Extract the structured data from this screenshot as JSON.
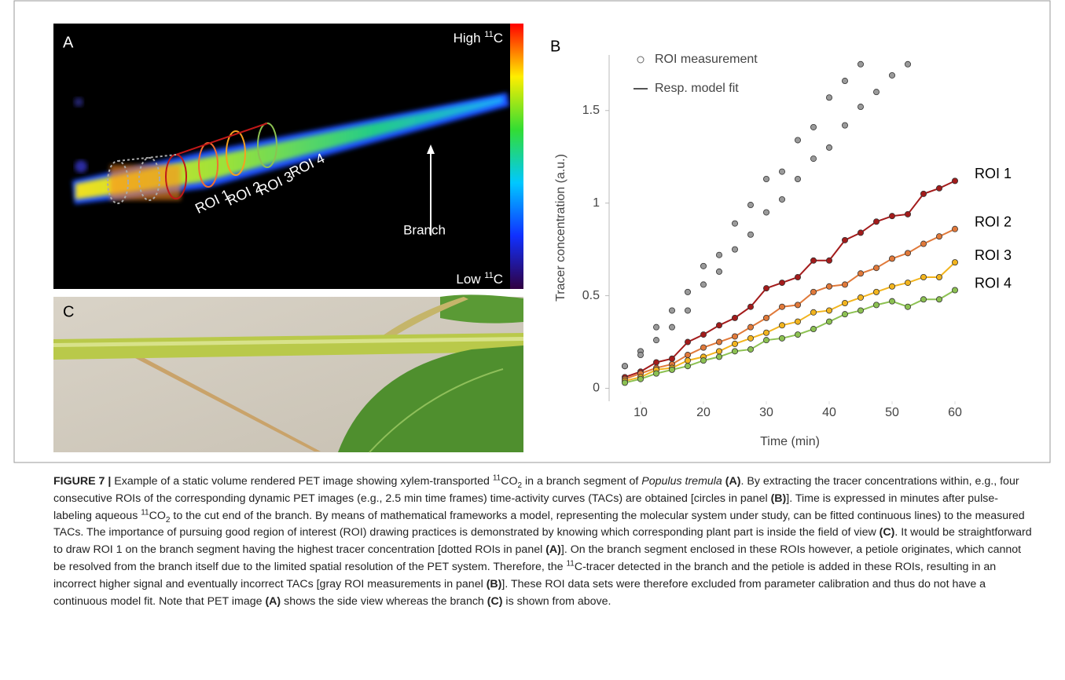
{
  "panel_a": {
    "label": "A",
    "high": [
      "High ",
      "11",
      "C"
    ],
    "low": [
      "Low ",
      "11",
      "C"
    ],
    "rois": [
      "ROI 1",
      "ROI 2",
      "ROI 3",
      "ROI 4"
    ],
    "arrow_label": "Branch"
  },
  "panel_c": {
    "label": "C"
  },
  "chart_data": {
    "type": "scatter_line",
    "panel_label": "B",
    "xlabel": "Time (min)",
    "ylabel": "Tracer concentration (a.u.)",
    "legend": [
      "ROI measurement",
      "Resp. model fit"
    ],
    "x": [
      7.5,
      10,
      12.5,
      15,
      17.5,
      20,
      22.5,
      25,
      27.5,
      30,
      32.5,
      35,
      37.5,
      40,
      42.5,
      45,
      47.5,
      50,
      52.5,
      55,
      57.5,
      60
    ],
    "xlim": [
      5,
      62.5
    ],
    "xticks": [
      10,
      20,
      30,
      40,
      50,
      60
    ],
    "ylim": [
      -0.07,
      1.8
    ],
    "yticks": [
      0,
      0.5,
      1,
      1.5
    ],
    "series": [
      {
        "color": "#9a9a9a",
        "fit": false,
        "values": [
          0.12,
          0.2,
          0.33,
          0.42,
          0.52,
          0.66,
          0.72,
          0.89,
          0.99,
          1.13,
          1.17,
          1.34,
          1.41,
          1.57,
          1.66,
          1.75,
          null,
          1.69,
          1.75,
          null,
          null,
          null
        ]
      },
      {
        "color": "#9a9a9a",
        "fit": false,
        "values": [
          0.12,
          0.18,
          0.26,
          0.33,
          0.42,
          0.56,
          0.63,
          0.75,
          0.83,
          0.95,
          1.02,
          1.13,
          1.24,
          1.3,
          1.42,
          1.52,
          1.6,
          null,
          null,
          null,
          null,
          null
        ]
      },
      {
        "name": "ROI 1",
        "color": "#a31b1b",
        "fit": true,
        "values": [
          0.06,
          0.09,
          0.14,
          0.16,
          0.25,
          0.29,
          0.34,
          0.38,
          0.44,
          0.54,
          0.57,
          0.6,
          0.69,
          0.69,
          0.8,
          0.84,
          0.9,
          0.93,
          0.94,
          1.05,
          1.08,
          1.12
        ]
      },
      {
        "name": "ROI 2",
        "color": "#e0793a",
        "fit": true,
        "values": [
          0.05,
          0.08,
          0.11,
          0.13,
          0.18,
          0.22,
          0.25,
          0.28,
          0.33,
          0.38,
          0.44,
          0.45,
          0.52,
          0.55,
          0.56,
          0.62,
          0.65,
          0.7,
          0.73,
          0.78,
          0.82,
          0.86
        ]
      },
      {
        "name": "ROI 3",
        "color": "#f2b41e",
        "fit": true,
        "values": [
          0.04,
          0.06,
          0.1,
          0.11,
          0.15,
          0.17,
          0.2,
          0.24,
          0.27,
          0.3,
          0.34,
          0.36,
          0.41,
          0.42,
          0.46,
          0.49,
          0.52,
          0.55,
          0.57,
          0.6,
          0.6,
          0.68
        ]
      },
      {
        "name": "ROI 4",
        "color": "#8cc152",
        "fit": true,
        "values": [
          0.03,
          0.05,
          0.08,
          0.1,
          0.12,
          0.15,
          0.17,
          0.2,
          0.21,
          0.26,
          0.27,
          0.29,
          0.32,
          0.36,
          0.4,
          0.42,
          0.45,
          0.47,
          0.44,
          0.48,
          0.48,
          0.53
        ]
      }
    ]
  },
  "caption": [
    "FIGURE 7 |",
    " Example of a static volume rendered PET image showing xylem-transported ",
    "11",
    "CO",
    "2",
    " in a branch segment of ",
    "Populus tremula",
    "(A)",
    ". By extracting the tracer concentrations within, e.g., four consecutive ROIs of the corresponding dynamic PET images (e.g., 2.5 min time frames) time-activity curves (TACs) are obtained [circles in panel ",
    "(B)",
    "]. Time is expressed in minutes after pulse-labeling aqueous ",
    "11",
    "CO",
    "2",
    " to the cut end of the branch. By means of mathematical frameworks a model, representing the molecular system under study, can be fitted continuous lines) to the measured TACs. The importance of pursuing good region of interest (ROI) drawing practices is demonstrated by knowing which corresponding plant part is inside the field of view ",
    "(C)",
    ". It would be straightforward to draw ROI 1 on the branch segment having the highest tracer concentration [dotted ROIs in panel ",
    "(A)",
    "]. On the branch segment enclosed in these ROIs however, a petiole originates, which cannot be resolved from the branch itself due to the limited spatial resolution of the PET system. Therefore, the ",
    "11",
    "C-tracer detected in the branch and the petiole is added in these ROIs, resulting in an incorrect higher signal and eventually incorrect TACs [gray ROI measurements in panel ",
    "(B)",
    "]. These ROI data sets were therefore excluded from parameter calibration and thus do not have a continuous model fit. Note that PET image ",
    "(A)",
    " shows the side view whereas the branch ",
    "(C)",
    " is shown from above."
  ]
}
